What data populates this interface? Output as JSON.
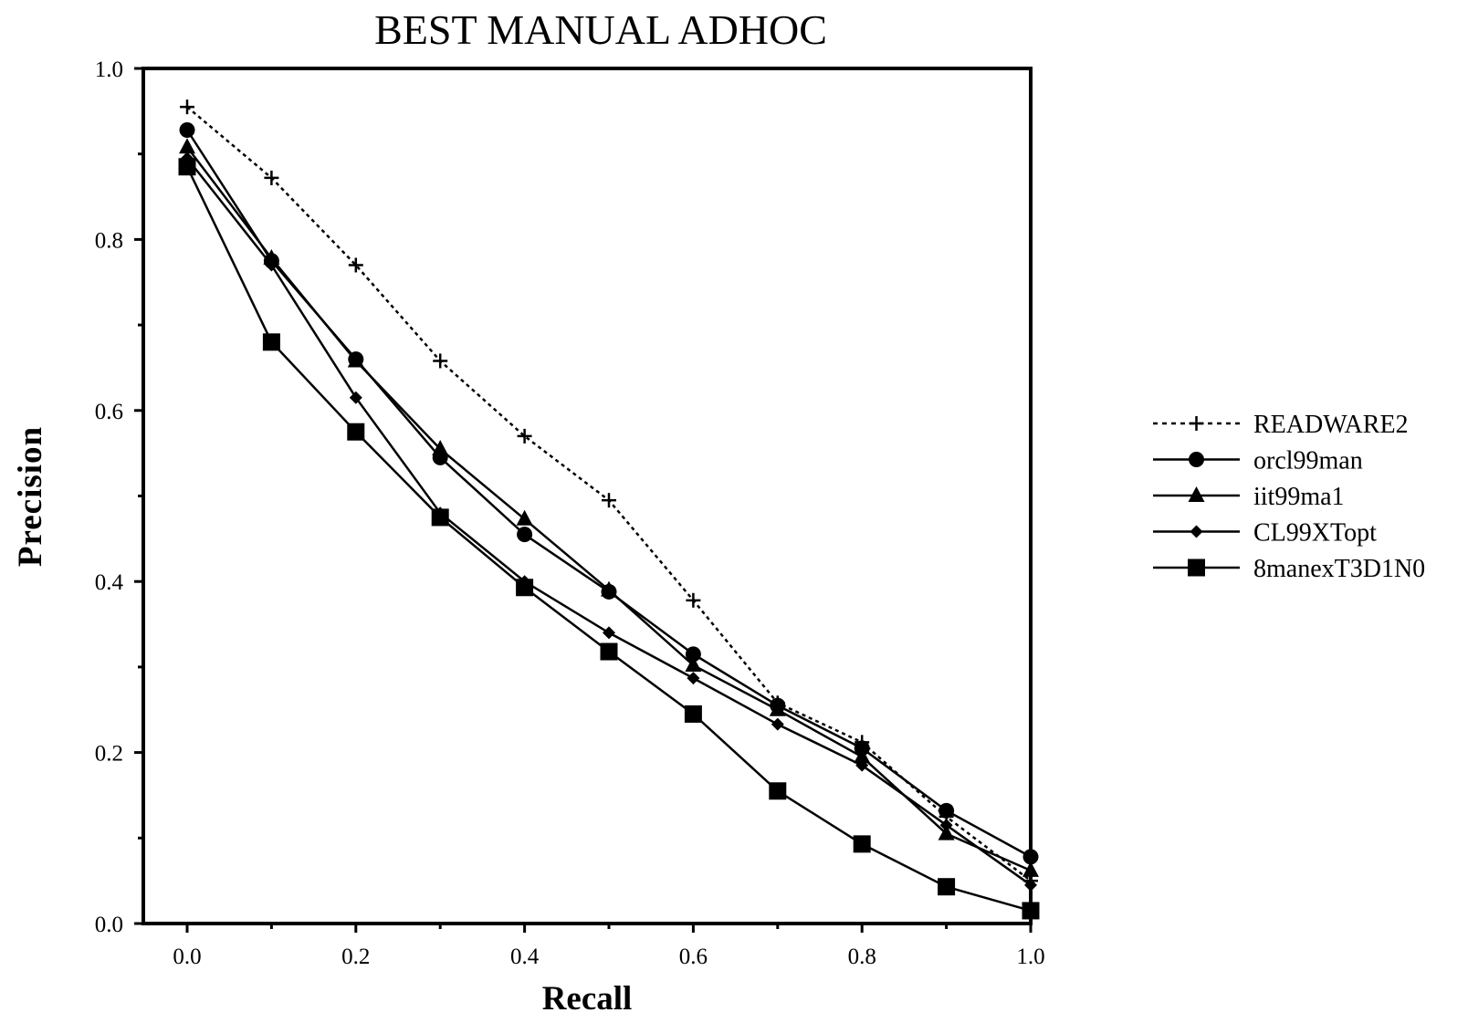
{
  "chart_data": {
    "type": "line",
    "title": "BEST MANUAL ADHOC",
    "xlabel": "Recall",
    "ylabel": "Precision",
    "xlim": [
      0.0,
      1.0
    ],
    "ylim": [
      0.0,
      1.0
    ],
    "x_ticks": [
      "0.0",
      "0.2",
      "0.4",
      "0.6",
      "0.8",
      "1.0"
    ],
    "y_ticks": [
      "0.0",
      "0.2",
      "0.4",
      "0.6",
      "0.8",
      "1.0"
    ],
    "grid": false,
    "legend_position": "right",
    "x": [
      0.0,
      0.1,
      0.2,
      0.3,
      0.4,
      0.5,
      0.6,
      0.7,
      0.8,
      0.9,
      1.0
    ],
    "series": [
      {
        "name": "READWARE2",
        "marker": "plus",
        "line": "dotted",
        "values": [
          0.955,
          0.872,
          0.77,
          0.658,
          0.57,
          0.495,
          0.378,
          0.258,
          0.212,
          0.125,
          0.05
        ]
      },
      {
        "name": "orcl99man",
        "marker": "circle",
        "line": "solid",
        "values": [
          0.928,
          0.775,
          0.66,
          0.545,
          0.455,
          0.388,
          0.315,
          0.255,
          0.205,
          0.132,
          0.078
        ]
      },
      {
        "name": "iit99ma1",
        "marker": "triangle",
        "line": "solid",
        "values": [
          0.908,
          0.778,
          0.658,
          0.555,
          0.473,
          0.39,
          0.302,
          0.25,
          0.195,
          0.105,
          0.062
        ]
      },
      {
        "name": "CL99XTopt",
        "marker": "diamond",
        "line": "solid",
        "values": [
          0.895,
          0.77,
          0.615,
          0.48,
          0.4,
          0.34,
          0.287,
          0.233,
          0.185,
          0.115,
          0.045
        ]
      },
      {
        "name": "8manexT3D1N0",
        "marker": "square",
        "line": "solid",
        "values": [
          0.885,
          0.68,
          0.575,
          0.475,
          0.393,
          0.318,
          0.245,
          0.155,
          0.093,
          0.043,
          0.015
        ]
      }
    ]
  }
}
